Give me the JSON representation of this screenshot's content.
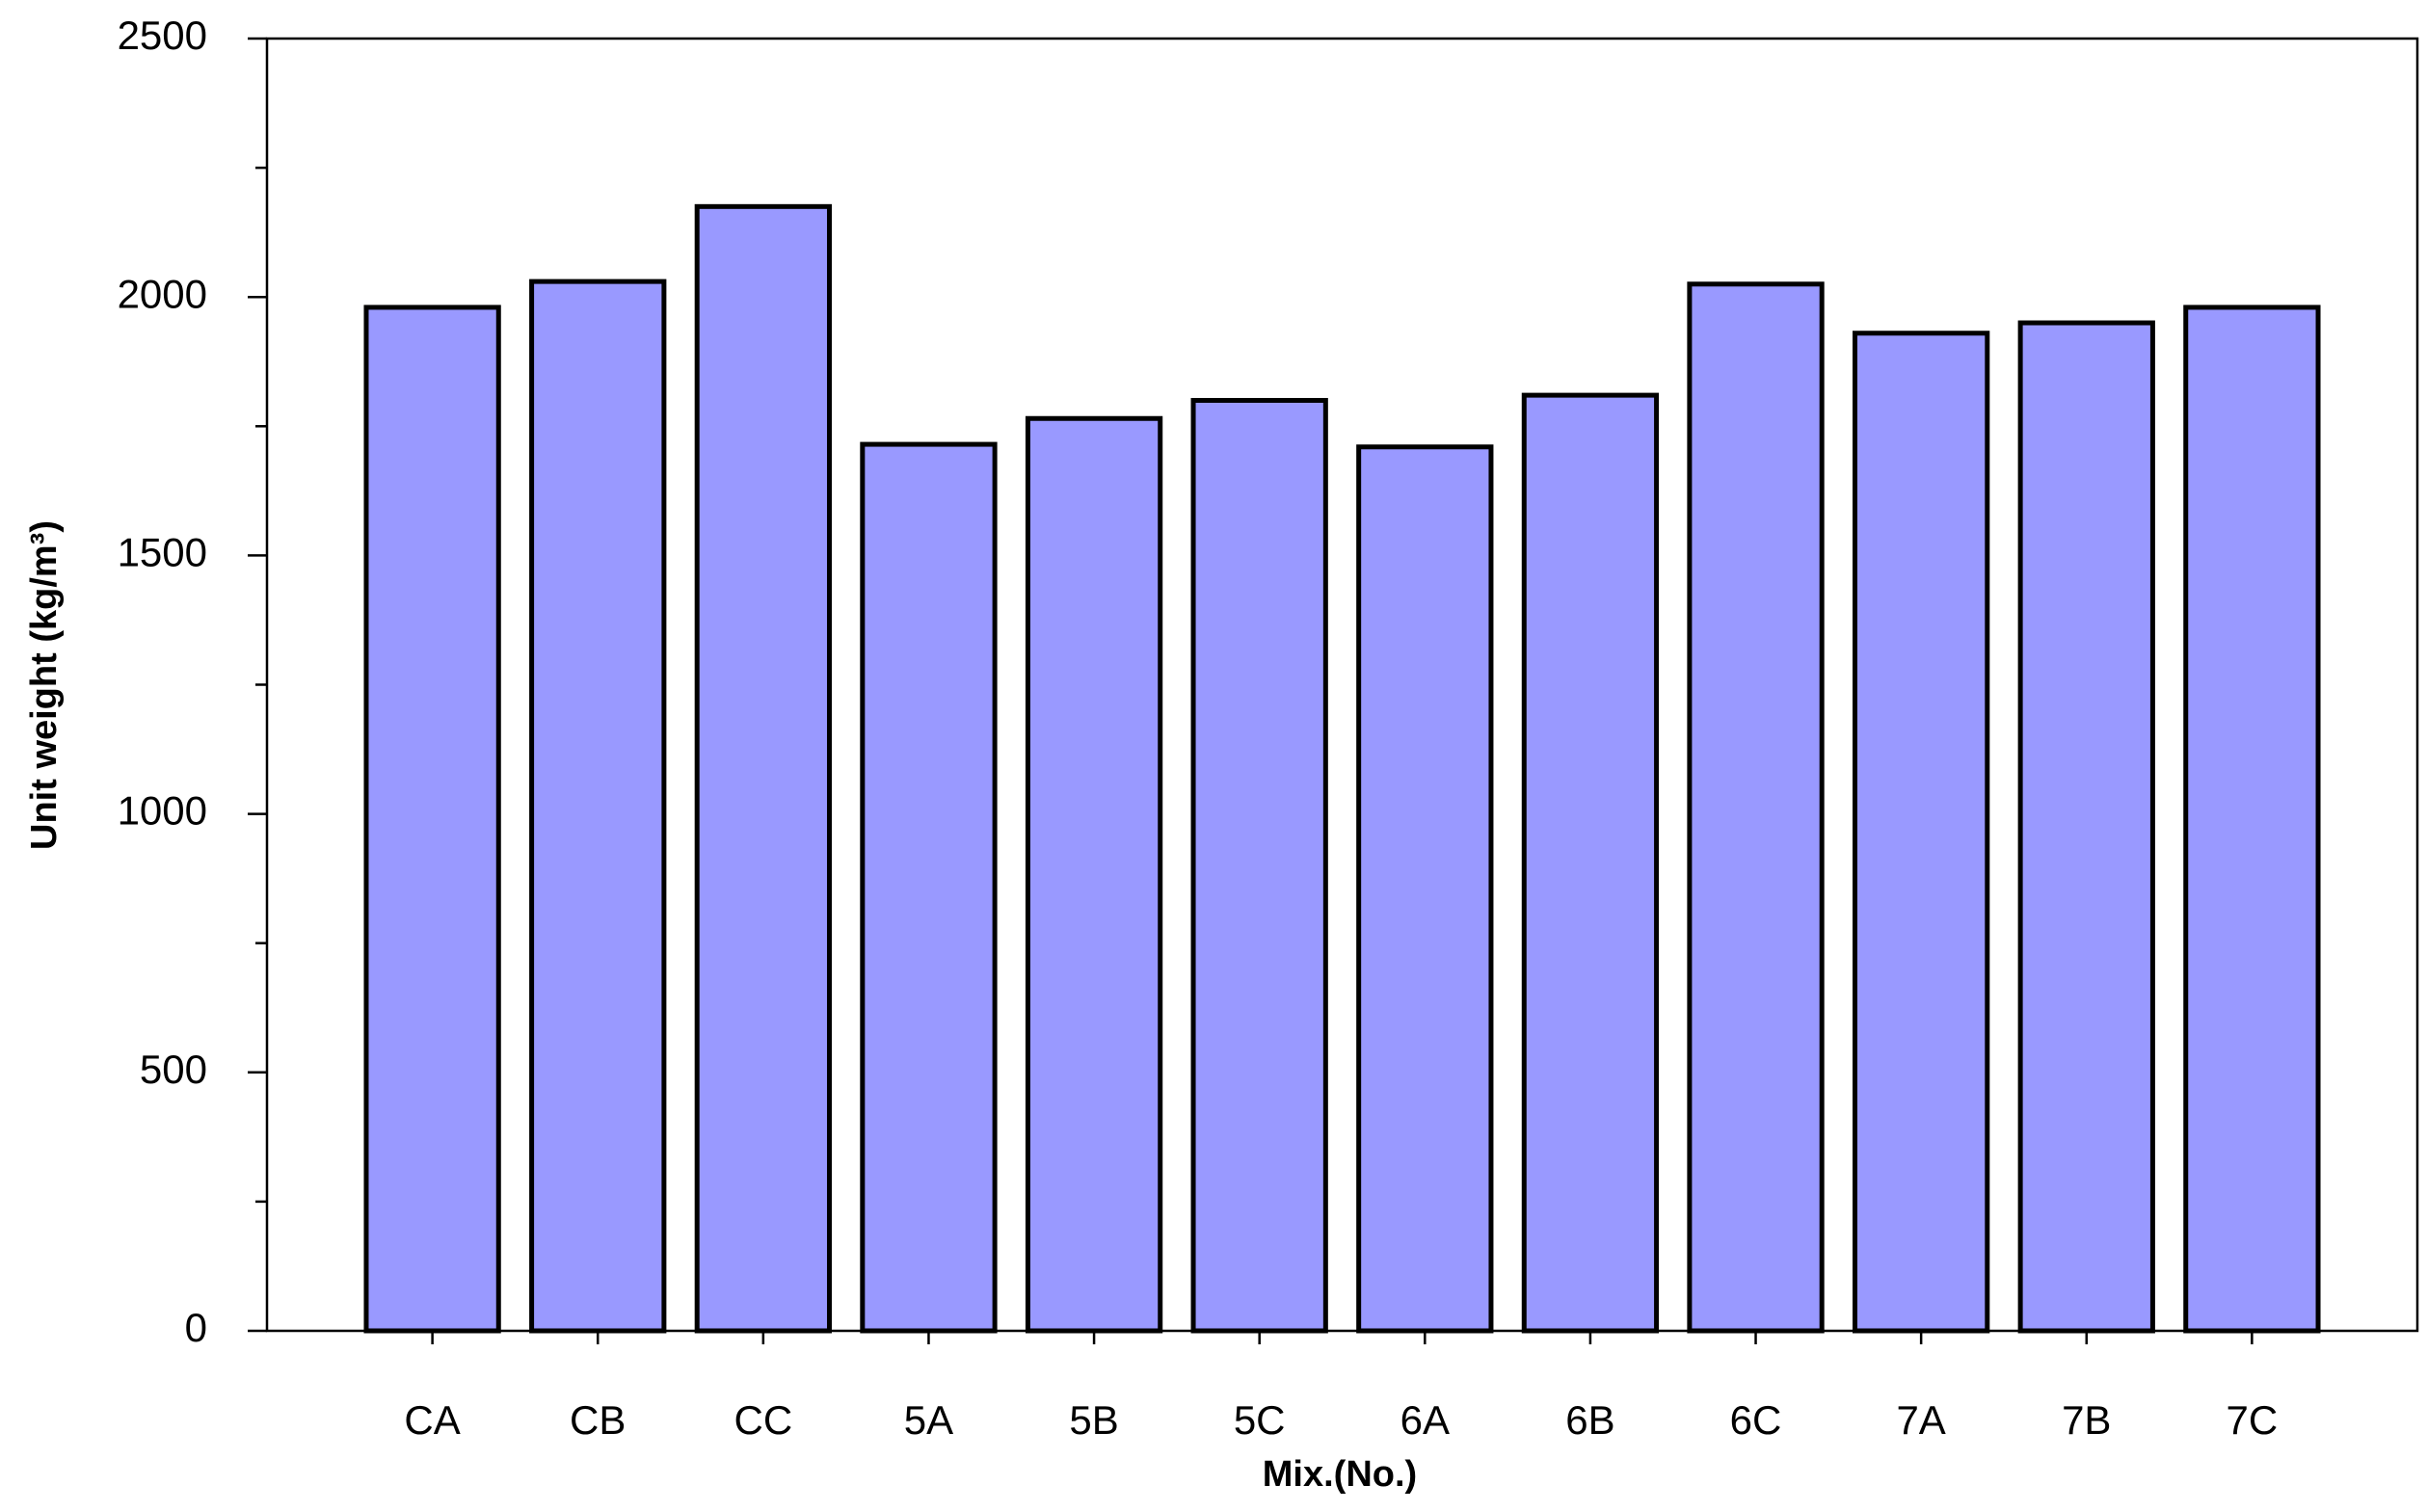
{
  "chart_data": {
    "type": "bar",
    "x_label": "Mix.(No.)",
    "y_label": "Unit weight (kg/m³)",
    "categories": [
      "CA",
      "CB",
      "CC",
      "5A",
      "5B",
      "5C",
      "6A",
      "6B",
      "6C",
      "7A",
      "7B",
      "7C"
    ],
    "values": [
      1980,
      2030,
      2175,
      1715,
      1765,
      1800,
      1710,
      1810,
      2025,
      1930,
      1950,
      1980
    ],
    "color": "#9999ff",
    "ylim": [
      0,
      2500
    ],
    "yticks": [
      0,
      500,
      1000,
      1500,
      2000,
      2500
    ],
    "minor_yticks": [
      250,
      750,
      1250,
      1750,
      2250
    ],
    "grid": false
  }
}
